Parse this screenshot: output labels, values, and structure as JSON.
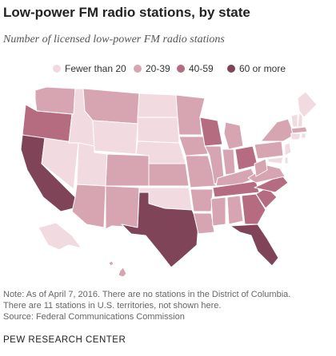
{
  "title": "Low-power FM radio stations, by state",
  "subtitle": "Number of licensed low-power FM radio stations",
  "legend": [
    {
      "label": "Fewer than 20",
      "color": "#f1dbe1"
    },
    {
      "label": "20-39",
      "color": "#d7a5b1"
    },
    {
      "label": "40-59",
      "color": "#b56c80"
    },
    {
      "label": "60 or more",
      "color": "#804458"
    }
  ],
  "notes": [
    "Note: As of April 7, 2016. There are no stations in the District of Columbia.",
    "There are 11 stations in U.S. territories, not shown here.",
    "Source: Federal Communications Commission"
  ],
  "organization": "PEW RESEARCH CENTER",
  "state_categories": {
    "WA": 1,
    "OR": 2,
    "CA": 3,
    "NV": 0,
    "ID": 0,
    "MT": 1,
    "WY": 0,
    "UT": 0,
    "AZ": 1,
    "CO": 1,
    "NM": 1,
    "ND": 0,
    "SD": 0,
    "NE": 0,
    "KS": 1,
    "OK": 0,
    "TX": 3,
    "MN": 1,
    "IA": 1,
    "MO": 1,
    "AR": 1,
    "LA": 1,
    "WI": 2,
    "IL": 1,
    "MI": 1,
    "IN": 1,
    "OH": 2,
    "KY": 1,
    "TN": 2,
    "MS": 1,
    "AL": 1,
    "GA": 2,
    "FL": 3,
    "SC": 2,
    "NC": 2,
    "VA": 1,
    "WV": 1,
    "PA": 1,
    "NY": 1,
    "ME": 0,
    "NH": 0,
    "VT": 0,
    "MA": 1,
    "CT": 0,
    "RI": 0,
    "NJ": 0,
    "MD": 0,
    "DE": 0,
    "AK": 0,
    "HI": 1
  }
}
